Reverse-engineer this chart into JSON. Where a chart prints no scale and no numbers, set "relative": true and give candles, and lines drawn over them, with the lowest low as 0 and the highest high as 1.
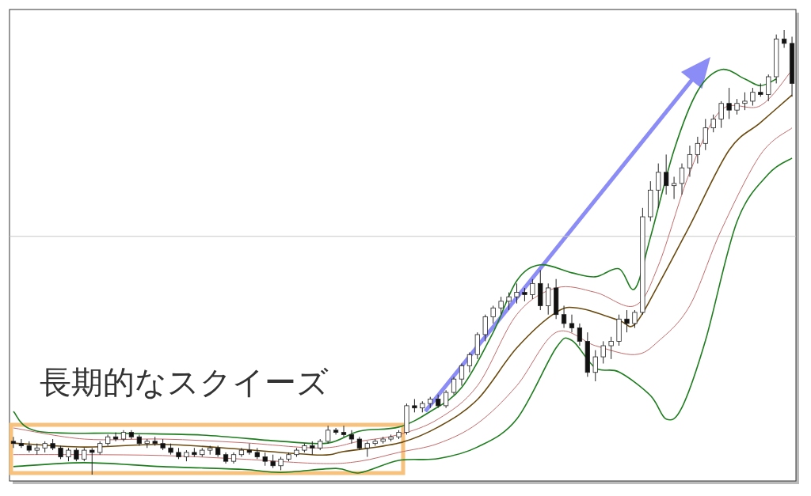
{
  "chart_data": {
    "type": "candlestick",
    "relative": true,
    "categories": [
      null,
      null,
      null,
      null,
      null,
      null,
      null,
      null,
      null,
      null,
      null,
      null,
      null,
      null,
      null,
      null,
      null,
      null,
      null,
      null,
      null,
      null,
      null,
      null,
      null,
      null,
      null,
      null,
      null,
      null,
      null,
      null,
      null,
      null,
      null,
      null,
      null,
      null,
      null,
      null,
      null,
      null,
      null,
      null,
      null,
      null,
      null,
      null,
      null,
      null,
      null,
      null,
      null,
      null,
      null,
      null,
      null,
      null,
      null,
      null,
      null,
      null,
      null,
      null,
      null,
      null,
      null,
      null,
      null,
      null,
      null,
      null,
      null,
      null,
      null,
      null,
      null,
      null,
      null,
      null,
      null,
      null,
      null,
      null,
      null,
      null,
      null,
      null,
      null,
      null,
      null,
      null,
      null,
      null,
      null,
      null,
      null,
      null,
      null,
      null
    ],
    "ohlc": [
      [
        0.075,
        0.085,
        0.06,
        0.07
      ],
      [
        0.07,
        0.08,
        0.06,
        0.065
      ],
      [
        0.065,
        0.075,
        0.05,
        0.055
      ],
      [
        0.055,
        0.07,
        0.045,
        0.06
      ],
      [
        0.06,
        0.075,
        0.05,
        0.07
      ],
      [
        0.07,
        0.08,
        0.055,
        0.06
      ],
      [
        0.06,
        0.065,
        0.035,
        0.04
      ],
      [
        0.04,
        0.06,
        0.03,
        0.055
      ],
      [
        0.055,
        0.06,
        0.03,
        0.035
      ],
      [
        0.035,
        0.06,
        0.03,
        0.055
      ],
      [
        0.055,
        0.06,
        0.0,
        0.05
      ],
      [
        0.05,
        0.075,
        0.045,
        0.07
      ],
      [
        0.07,
        0.09,
        0.065,
        0.085
      ],
      [
        0.085,
        0.095,
        0.075,
        0.08
      ],
      [
        0.08,
        0.1,
        0.075,
        0.095
      ],
      [
        0.095,
        0.1,
        0.08,
        0.085
      ],
      [
        0.085,
        0.09,
        0.065,
        0.07
      ],
      [
        0.07,
        0.08,
        0.06,
        0.075
      ],
      [
        0.075,
        0.085,
        0.065,
        0.07
      ],
      [
        0.07,
        0.08,
        0.055,
        0.06
      ],
      [
        0.06,
        0.07,
        0.045,
        0.05
      ],
      [
        0.05,
        0.06,
        0.035,
        0.04
      ],
      [
        0.04,
        0.055,
        0.03,
        0.05
      ],
      [
        0.05,
        0.06,
        0.04,
        0.045
      ],
      [
        0.045,
        0.06,
        0.04,
        0.055
      ],
      [
        0.055,
        0.065,
        0.045,
        0.06
      ],
      [
        0.06,
        0.065,
        0.04,
        0.045
      ],
      [
        0.045,
        0.05,
        0.025,
        0.03
      ],
      [
        0.03,
        0.05,
        0.025,
        0.045
      ],
      [
        0.045,
        0.06,
        0.04,
        0.055
      ],
      [
        0.055,
        0.07,
        0.045,
        0.05
      ],
      [
        0.05,
        0.06,
        0.035,
        0.04
      ],
      [
        0.04,
        0.05,
        0.02,
        0.03
      ],
      [
        0.03,
        0.045,
        0.015,
        0.02
      ],
      [
        0.02,
        0.04,
        0.01,
        0.035
      ],
      [
        0.035,
        0.05,
        0.03,
        0.045
      ],
      [
        0.045,
        0.06,
        0.04,
        0.055
      ],
      [
        0.055,
        0.07,
        0.05,
        0.065
      ],
      [
        0.065,
        0.075,
        0.045,
        0.06
      ],
      [
        0.06,
        0.08,
        0.055,
        0.075
      ],
      [
        0.075,
        0.11,
        0.07,
        0.1
      ],
      [
        0.1,
        0.105,
        0.09,
        0.095
      ],
      [
        0.095,
        0.11,
        0.085,
        0.09
      ],
      [
        0.09,
        0.1,
        0.07,
        0.08
      ],
      [
        0.08,
        0.085,
        0.055,
        0.06
      ],
      [
        0.06,
        0.075,
        0.04,
        0.07
      ],
      [
        0.07,
        0.08,
        0.065,
        0.075
      ],
      [
        0.075,
        0.085,
        0.07,
        0.08
      ],
      [
        0.08,
        0.09,
        0.075,
        0.085
      ],
      [
        0.085,
        0.1,
        0.08,
        0.095
      ],
      [
        0.095,
        0.16,
        0.09,
        0.155
      ],
      [
        0.155,
        0.17,
        0.14,
        0.15
      ],
      [
        0.15,
        0.165,
        0.14,
        0.16
      ],
      [
        0.16,
        0.175,
        0.15,
        0.17
      ],
      [
        0.17,
        0.18,
        0.15,
        0.155
      ],
      [
        0.155,
        0.19,
        0.15,
        0.185
      ],
      [
        0.185,
        0.22,
        0.18,
        0.215
      ],
      [
        0.215,
        0.25,
        0.2,
        0.245
      ],
      [
        0.245,
        0.275,
        0.23,
        0.27
      ],
      [
        0.27,
        0.32,
        0.26,
        0.315
      ],
      [
        0.315,
        0.36,
        0.3,
        0.355
      ],
      [
        0.355,
        0.38,
        0.34,
        0.375
      ],
      [
        0.375,
        0.4,
        0.36,
        0.39
      ],
      [
        0.39,
        0.41,
        0.37,
        0.4
      ],
      [
        0.4,
        0.43,
        0.385,
        0.41
      ],
      [
        0.41,
        0.42,
        0.39,
        0.405
      ],
      [
        0.405,
        0.44,
        0.395,
        0.43
      ],
      [
        0.43,
        0.46,
        0.37,
        0.38
      ],
      [
        0.38,
        0.43,
        0.36,
        0.42
      ],
      [
        0.42,
        0.44,
        0.35,
        0.36
      ],
      [
        0.36,
        0.38,
        0.33,
        0.34
      ],
      [
        0.34,
        0.36,
        0.32,
        0.33
      ],
      [
        0.33,
        0.34,
        0.29,
        0.3
      ],
      [
        0.3,
        0.32,
        0.22,
        0.23
      ],
      [
        0.23,
        0.28,
        0.21,
        0.265
      ],
      [
        0.265,
        0.3,
        0.25,
        0.29
      ],
      [
        0.29,
        0.31,
        0.26,
        0.3
      ],
      [
        0.3,
        0.36,
        0.29,
        0.35
      ],
      [
        0.35,
        0.37,
        0.32,
        0.34
      ],
      [
        0.34,
        0.37,
        0.33,
        0.365
      ],
      [
        0.365,
        0.6,
        0.36,
        0.58
      ],
      [
        0.58,
        0.66,
        0.57,
        0.64
      ],
      [
        0.64,
        0.7,
        0.6,
        0.68
      ],
      [
        0.68,
        0.72,
        0.63,
        0.65
      ],
      [
        0.65,
        0.67,
        0.62,
        0.655
      ],
      [
        0.655,
        0.7,
        0.63,
        0.69
      ],
      [
        0.69,
        0.74,
        0.67,
        0.72
      ],
      [
        0.72,
        0.76,
        0.7,
        0.745
      ],
      [
        0.745,
        0.8,
        0.73,
        0.78
      ],
      [
        0.78,
        0.81,
        0.77,
        0.8
      ],
      [
        0.8,
        0.84,
        0.78,
        0.835
      ],
      [
        0.835,
        0.87,
        0.8,
        0.82
      ],
      [
        0.82,
        0.845,
        0.81,
        0.835
      ],
      [
        0.835,
        0.86,
        0.82,
        0.84
      ],
      [
        0.84,
        0.87,
        0.83,
        0.86
      ],
      [
        0.86,
        0.88,
        0.85,
        0.855
      ],
      [
        0.855,
        0.9,
        0.84,
        0.895
      ],
      [
        0.895,
        0.99,
        0.88,
        0.98
      ],
      [
        0.98,
        1.0,
        0.96,
        0.97
      ],
      [
        0.97,
        0.985,
        0.85,
        0.88
      ]
    ],
    "series": [
      {
        "type": "line",
        "color": "#1e7d1e",
        "values": [
          0.142,
          null,
          null,
          0.098,
          null,
          null,
          null,
          null,
          null,
          null,
          null,
          null,
          null,
          null,
          0.093,
          null,
          null,
          null,
          null,
          null,
          null,
          null,
          null,
          null,
          0.089,
          null,
          null,
          null,
          null,
          null,
          null,
          null,
          null,
          null,
          0.075,
          null,
          null,
          null,
          null,
          null,
          0.071,
          null,
          null,
          null,
          0.098,
          null,
          null,
          null,
          null,
          0.107,
          null,
          null,
          null,
          0.142,
          null,
          null,
          null,
          0.196,
          null,
          null,
          null,
          0.32,
          null,
          null,
          0.436,
          null,
          null,
          0.472,
          null,
          null,
          null,
          0.454,
          null,
          null,
          0.445,
          null,
          null,
          0.463,
          null,
          0.418,
          null,
          0.534,
          null,
          null,
          0.73,
          null,
          null,
          0.863,
          null,
          null,
          0.911,
          null,
          null,
          0.89,
          null,
          0.875,
          null,
          0.89,
          null,
          null
        ]
      },
      {
        "type": "line",
        "color": "#c46a6a",
        "values": [
          0.105,
          null,
          null,
          null,
          null,
          null,
          null,
          null,
          null,
          0.08,
          null,
          null,
          null,
          null,
          null,
          null,
          null,
          null,
          null,
          0.08,
          null,
          null,
          null,
          null,
          null,
          null,
          null,
          null,
          null,
          0.072,
          null,
          null,
          null,
          null,
          null,
          null,
          null,
          null,
          null,
          0.06,
          null,
          null,
          null,
          null,
          0.075,
          null,
          null,
          null,
          null,
          0.09,
          null,
          null,
          null,
          null,
          0.125,
          null,
          null,
          null,
          null,
          0.2,
          null,
          null,
          null,
          null,
          0.36,
          null,
          null,
          null,
          null,
          0.42,
          null,
          null,
          null,
          null,
          0.41,
          null,
          null,
          null,
          null,
          0.38,
          null,
          null,
          0.47,
          null,
          null,
          null,
          0.68,
          null,
          null,
          null,
          0.82,
          null,
          null,
          null,
          null,
          0.83,
          null,
          null,
          null,
          0.91
        ]
      },
      {
        "type": "line",
        "color": "#6b4a10",
        "values": [
          0.071,
          null,
          null,
          null,
          null,
          null,
          null,
          null,
          null,
          0.062,
          null,
          null,
          null,
          null,
          null,
          null,
          null,
          null,
          null,
          0.068,
          null,
          null,
          null,
          null,
          null,
          null,
          null,
          null,
          null,
          0.057,
          null,
          null,
          null,
          null,
          null,
          null,
          null,
          null,
          null,
          0.044,
          null,
          null,
          0.052,
          null,
          null,
          null,
          null,
          null,
          null,
          0.071,
          null,
          null,
          null,
          null,
          0.107,
          null,
          null,
          null,
          null,
          0.169,
          null,
          null,
          null,
          null,
          0.285,
          null,
          null,
          null,
          null,
          0.365,
          null,
          null,
          0.374,
          null,
          null,
          null,
          null,
          0.347,
          null,
          0.338,
          null,
          null,
          0.427,
          null,
          null,
          null,
          0.56,
          null,
          null,
          null,
          null,
          0.73,
          null,
          null,
          null,
          0.792,
          null,
          null,
          null,
          0.854
        ]
      },
      {
        "type": "line",
        "color": "#c46a6a",
        "values": [
          0.045,
          null,
          null,
          null,
          null,
          null,
          null,
          null,
          null,
          0.045,
          null,
          null,
          null,
          null,
          null,
          null,
          null,
          null,
          null,
          0.043,
          null,
          null,
          null,
          null,
          null,
          null,
          null,
          null,
          null,
          0.035,
          null,
          null,
          null,
          null,
          null,
          null,
          null,
          null,
          null,
          0.025,
          null,
          null,
          null,
          null,
          0.03,
          null,
          null,
          null,
          null,
          0.05,
          null,
          null,
          null,
          null,
          0.07,
          null,
          null,
          null,
          null,
          0.115,
          null,
          null,
          null,
          null,
          0.2,
          null,
          null,
          null,
          null,
          0.32,
          null,
          null,
          null,
          null,
          0.29,
          null,
          null,
          null,
          null,
          0.27,
          null,
          null,
          0.3,
          null,
          null,
          null,
          0.38,
          null,
          null,
          null,
          0.55,
          null,
          null,
          null,
          null,
          0.72,
          null,
          null,
          null,
          0.78
        ]
      },
      {
        "type": "line",
        "color": "#1e7d1e",
        "values": [
          0.018,
          null,
          null,
          null,
          null,
          null,
          null,
          null,
          null,
          0.027,
          null,
          null,
          null,
          null,
          null,
          null,
          null,
          null,
          null,
          0.018,
          null,
          null,
          null,
          null,
          null,
          null,
          null,
          null,
          null,
          0.012,
          null,
          null,
          null,
          null,
          0.005,
          null,
          null,
          null,
          null,
          null,
          null,
          0.014,
          null,
          null,
          0.004,
          null,
          null,
          null,
          null,
          0.032,
          null,
          null,
          null,
          null,
          0.036,
          null,
          null,
          null,
          null,
          0.062,
          null,
          null,
          null,
          null,
          0.125,
          null,
          null,
          null,
          null,
          0.285,
          null,
          0.302,
          null,
          null,
          0.24,
          null,
          null,
          0.231,
          null,
          null,
          null,
          0.178,
          null,
          0.125,
          null,
          0.151,
          null,
          null,
          0.302,
          null,
          null,
          null,
          0.569,
          null,
          null,
          null,
          0.676,
          null,
          null,
          0.712
        ]
      }
    ],
    "ref_lines": [
      {
        "axis": "y",
        "value": 0.536,
        "color": "#c8c8c8"
      }
    ],
    "annotations": [
      "長期的なスクイーズ"
    ]
  }
}
